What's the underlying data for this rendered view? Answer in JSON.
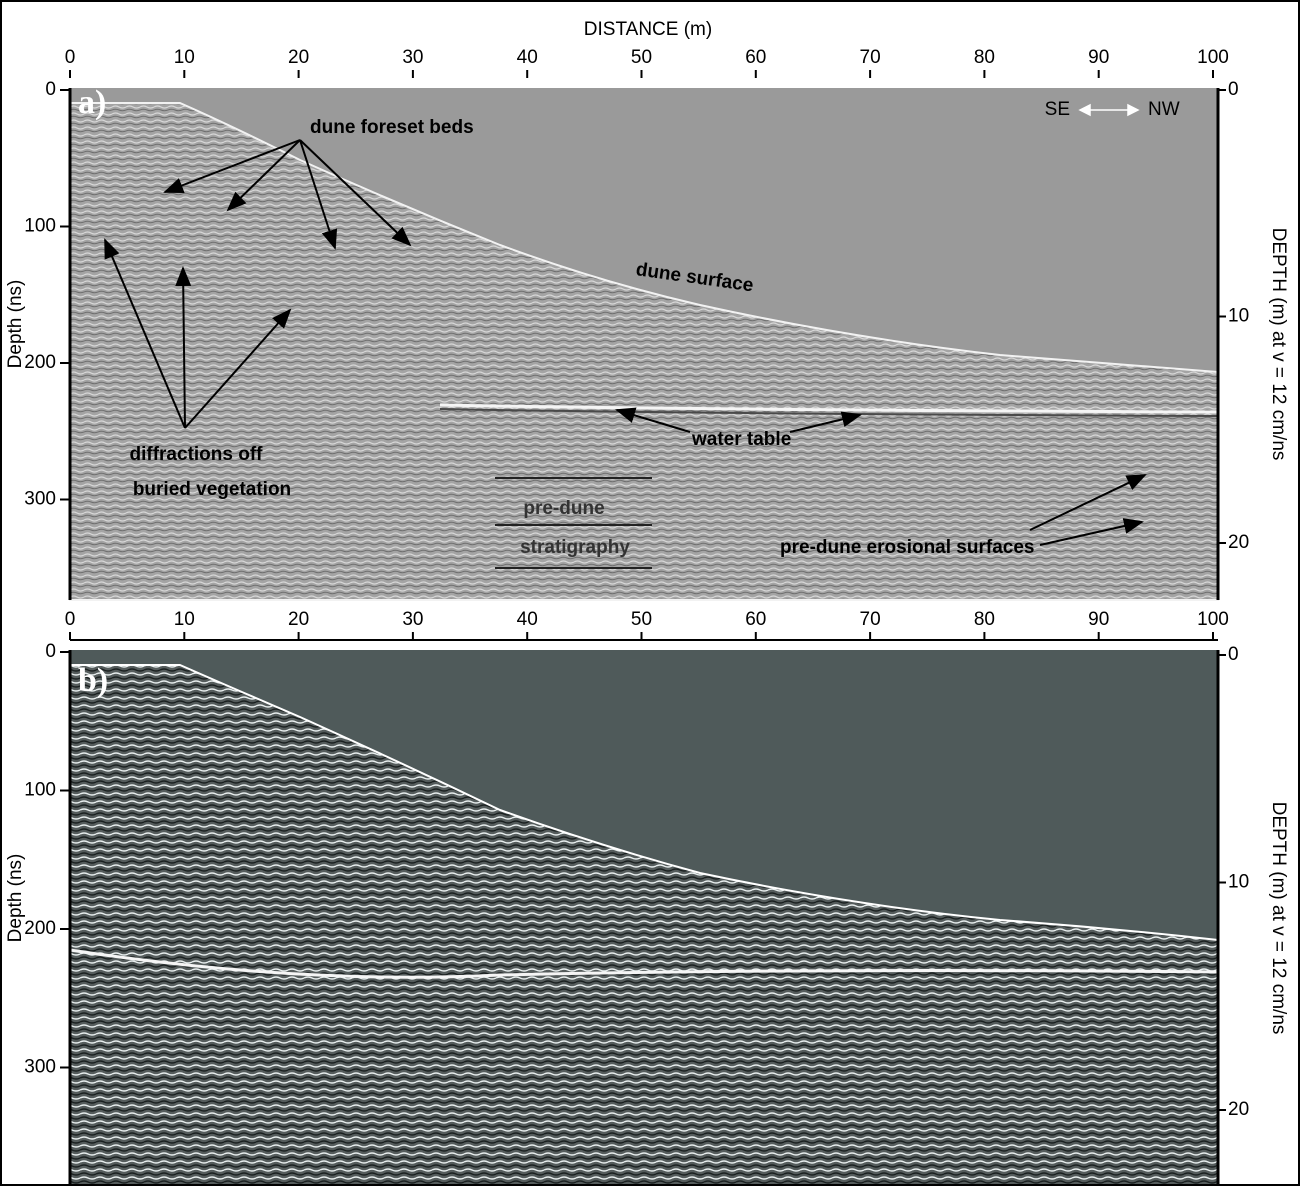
{
  "figure": {
    "title_x": "DISTANCE (m)",
    "orientation": {
      "left": "SE",
      "right": "NW"
    },
    "panels": [
      {
        "label": "a)",
        "x_ticks": [
          0,
          10,
          20,
          30,
          40,
          50,
          60,
          70,
          80,
          90,
          100
        ],
        "y_ticks": [
          0,
          100,
          200,
          300
        ],
        "y2_ticks": [
          0,
          10,
          20
        ],
        "y_label": "Depth (ns)",
        "y2_label": "DEPTH (m) at v = 12 cm/ns",
        "annotations": {
          "foreset": "dune foreset beds",
          "surface": "dune surface",
          "diffractions_1": "diffractions off",
          "diffractions_2": "buried vegetation",
          "water_table": "water table",
          "predune_1": "pre-dune",
          "predune_2": "stratigraphy",
          "erosional": "pre-dune erosional surfaces"
        }
      },
      {
        "label": "b)",
        "x_ticks": [
          0,
          10,
          20,
          30,
          40,
          50,
          60,
          70,
          80,
          90,
          100
        ],
        "y_ticks": [
          0,
          100,
          200,
          300
        ],
        "y2_ticks": [
          0,
          10,
          20
        ],
        "y_label": "Depth (ns)",
        "y2_label": "DEPTH (m) at v = 12 cm/ns"
      }
    ]
  }
}
